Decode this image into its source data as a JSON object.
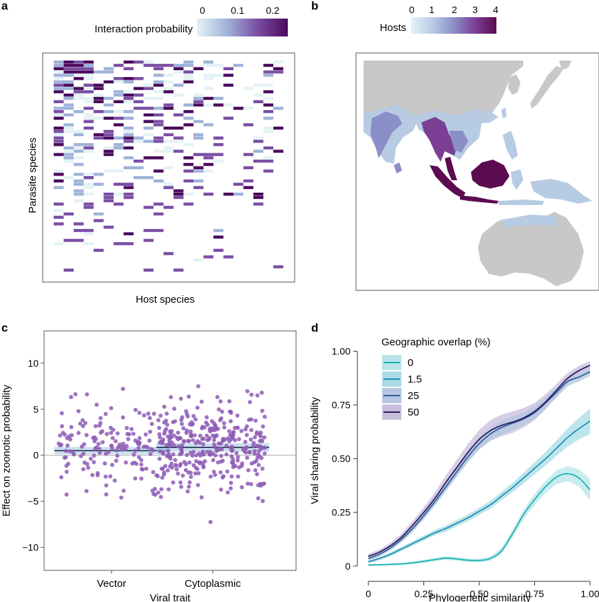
{
  "chart_data": [
    {
      "panel": "a",
      "type": "heatmap",
      "xlabel": "Host species",
      "ylabel": "Parasite species",
      "colorbar": {
        "title": "Interaction probability",
        "ticks": [
          "0",
          "0.1",
          "0.2"
        ],
        "range": [
          0,
          0.25
        ]
      },
      "colors": [
        "#e4f2f5",
        "#9fb3d9",
        "#7a4ea3",
        "#4a0a5c"
      ]
    },
    {
      "panel": "b",
      "type": "map",
      "colorbar": {
        "title": "Hosts",
        "ticks": [
          "0",
          "1",
          "2",
          "3",
          "4"
        ],
        "range": [
          0,
          4
        ]
      },
      "colors": {
        "land": "#c8c8c8",
        "low": "#b7cbe3",
        "mid": "#8a8fc8",
        "high": "#7b3f96",
        "max": "#5c0b50"
      }
    },
    {
      "panel": "c",
      "type": "scatter",
      "xlabel": "Viral trait",
      "ylabel": "Effect on zoonotic probability",
      "categories": [
        "Vector",
        "Cytoplasmic"
      ],
      "ylim": [
        -12.5,
        13.5
      ],
      "yticks": [
        -10,
        -5,
        0,
        5,
        10
      ],
      "summary": [
        {
          "category": "Vector",
          "mean": 0.5,
          "lower": 0.1,
          "upper": 0.9,
          "n_points": 170
        },
        {
          "category": "Cytoplasmic",
          "mean": 0.85,
          "lower": 0.4,
          "upper": 1.3,
          "n_points": 330
        }
      ],
      "point_color": "#8e5cb5"
    },
    {
      "panel": "d",
      "type": "line",
      "xlabel": "Phylogenetic similarity",
      "ylabel": "Viral sharing probability",
      "xlim": [
        0,
        1
      ],
      "ylim": [
        -0.02,
        1.05
      ],
      "xticks": [
        "0",
        "0.25",
        "0.50",
        "0.75",
        "1.00"
      ],
      "yticks": [
        "0",
        "0.25",
        "0.50",
        "0.75",
        "1.00"
      ],
      "legend_title": "Geographic overlap (%)",
      "legend_position": "top-left",
      "x": [
        0,
        0.05,
        0.1,
        0.15,
        0.2,
        0.25,
        0.3,
        0.35,
        0.4,
        0.45,
        0.5,
        0.55,
        0.6,
        0.65,
        0.7,
        0.75,
        0.8,
        0.85,
        0.9,
        0.95,
        1.0
      ],
      "series": [
        {
          "name": "0",
          "color": "#17b3b0",
          "band": "#b8e4ea",
          "values": [
            0.005,
            0.006,
            0.008,
            0.01,
            0.015,
            0.022,
            0.03,
            0.037,
            0.033,
            0.027,
            0.026,
            0.035,
            0.07,
            0.15,
            0.24,
            0.31,
            0.37,
            0.415,
            0.43,
            0.41,
            0.355
          ],
          "band_width": [
            0.004,
            0.004,
            0.005,
            0.005,
            0.006,
            0.007,
            0.008,
            0.008,
            0.008,
            0.008,
            0.008,
            0.01,
            0.014,
            0.018,
            0.022,
            0.026,
            0.028,
            0.032,
            0.035,
            0.04,
            0.05
          ]
        },
        {
          "name": "1.5",
          "color": "#1e8fb3",
          "band": "#a9dce6",
          "values": [
            0.02,
            0.035,
            0.055,
            0.08,
            0.105,
            0.13,
            0.155,
            0.175,
            0.2,
            0.225,
            0.255,
            0.285,
            0.325,
            0.365,
            0.41,
            0.455,
            0.5,
            0.55,
            0.6,
            0.64,
            0.675
          ],
          "band_width": [
            0.008,
            0.008,
            0.009,
            0.01,
            0.011,
            0.012,
            0.013,
            0.014,
            0.015,
            0.016,
            0.017,
            0.018,
            0.02,
            0.022,
            0.025,
            0.028,
            0.032,
            0.036,
            0.042,
            0.05,
            0.06
          ]
        },
        {
          "name": "25",
          "color": "#2f5d9a",
          "band": "#b4c6e0",
          "values": [
            0.035,
            0.055,
            0.085,
            0.125,
            0.175,
            0.235,
            0.3,
            0.37,
            0.44,
            0.51,
            0.57,
            0.615,
            0.645,
            0.665,
            0.685,
            0.715,
            0.76,
            0.81,
            0.86,
            0.88,
            0.905
          ],
          "band_width": [
            0.01,
            0.01,
            0.012,
            0.014,
            0.016,
            0.018,
            0.02,
            0.022,
            0.024,
            0.026,
            0.028,
            0.03,
            0.032,
            0.032,
            0.03,
            0.028,
            0.026,
            0.024,
            0.022,
            0.02,
            0.02
          ]
        },
        {
          "name": "50",
          "color": "#2b1a5e",
          "band": "#c7bedc",
          "values": [
            0.045,
            0.065,
            0.095,
            0.135,
            0.19,
            0.25,
            0.315,
            0.39,
            0.46,
            0.53,
            0.59,
            0.63,
            0.655,
            0.67,
            0.69,
            0.72,
            0.765,
            0.82,
            0.875,
            0.91,
            0.935
          ],
          "band_width": [
            0.012,
            0.012,
            0.014,
            0.016,
            0.02,
            0.024,
            0.028,
            0.032,
            0.036,
            0.04,
            0.044,
            0.048,
            0.05,
            0.05,
            0.045,
            0.04,
            0.035,
            0.03,
            0.025,
            0.022,
            0.02
          ]
        }
      ]
    }
  ]
}
